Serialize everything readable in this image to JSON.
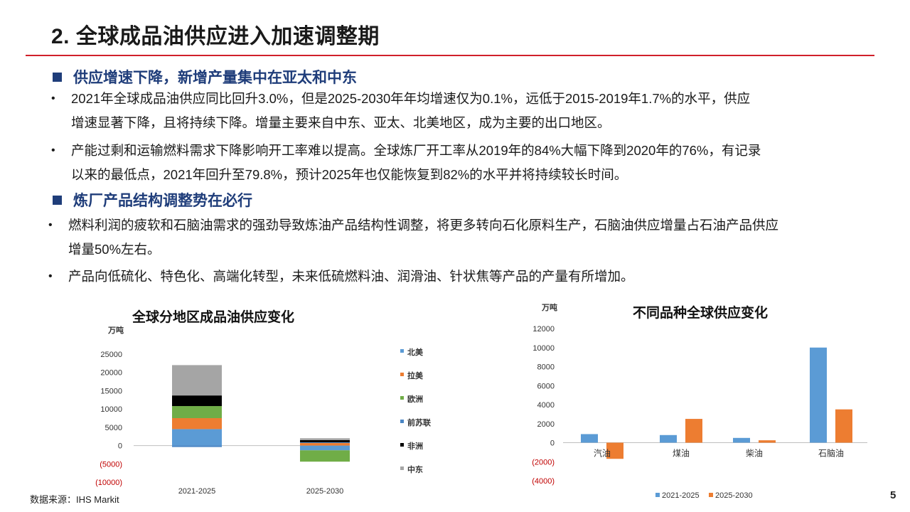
{
  "page": {
    "title": "2. 全球成品油供应进入加速调整期",
    "sections": [
      {
        "heading": "供应增速下降，新增产量集中在亚太和中东",
        "bullets": [
          [
            "2021年全球成品油供应同比回升3.0%，但是2025-2030年年均增速仅为0.1%，远低于2015-2019年1.7%的水平，供应",
            "增速显著下降，且将持续下降。增量主要来自中东、亚太、北美地区，成为主要的出口地区。"
          ],
          [
            "产能过剩和运输燃料需求下降影响开工率难以提高。全球炼厂开工率从2019年的84%大幅下降到2020年的76%，有记录",
            "以来的最低点，2021年回升至79.8%，预计2025年也仅能恢复到82%的水平并将持续较长时间。"
          ]
        ]
      },
      {
        "heading": "炼厂产品结构调整势在必行",
        "bullets": [
          [
            "燃料利润的疲软和石脑油需求的强劲导致炼油产品结构性调整，将更多转向石化原料生产，石脑油供应增量占石油产品供应",
            "增量50%左右。"
          ],
          [
            "产品向低硫化、特色化、高端化转型，未来低硫燃料油、润滑油、针状焦等产品的产量有所增加。"
          ]
        ]
      }
    ],
    "bullet_char": "•",
    "footer": "数据来源：IHS Markit",
    "page_number": "5"
  },
  "colors": {
    "accent_red": "#d0202a",
    "heading_blue": "#1f3d7a"
  },
  "chart_data": [
    {
      "type": "bar",
      "stacked": true,
      "title": "全球分地区成品油供应变化",
      "ylabel": "万吨",
      "categories": [
        "2021-2025",
        "2025-2030"
      ],
      "yticks": [
        "25000",
        "20000",
        "15000",
        "10000",
        "5000",
        "0",
        "(5000)",
        "(10000)"
      ],
      "ylim": [
        -10000,
        25000
      ],
      "series": [
        {
          "name": "北美",
          "color": "#5b9bd5",
          "values": [
            4500,
            -1300
          ]
        },
        {
          "name": "拉美",
          "color": "#ed7d31",
          "values": [
            3000,
            700
          ]
        },
        {
          "name": "欧洲",
          "color": "#70ad47",
          "values": [
            3300,
            -3100
          ]
        },
        {
          "name": "前苏联",
          "color": "#4a86c5",
          "values": [
            -400,
            200
          ]
        },
        {
          "name": "非洲",
          "color": "#000000",
          "values": [
            2900,
            600
          ]
        },
        {
          "name": "中东",
          "color": "#a5a5a5",
          "values": [
            8300,
            500
          ]
        }
      ],
      "legend": "right"
    },
    {
      "type": "bar",
      "title": "不同品种全球供应变化",
      "ylabel": "万吨",
      "categories": [
        "汽油",
        "煤油",
        "柴油",
        "石脑油"
      ],
      "yticks": [
        "12000",
        "10000",
        "8000",
        "6000",
        "4000",
        "2000",
        "0",
        "(2000)",
        "(4000)"
      ],
      "ylim": [
        -4000,
        12000
      ],
      "series": [
        {
          "name": "2021-2025",
          "color": "#5b9bd5",
          "values": [
            900,
            800,
            500,
            10000
          ]
        },
        {
          "name": "2025-2030",
          "color": "#ed7d31",
          "values": [
            -1700,
            2500,
            250,
            3500
          ]
        }
      ],
      "legend": "bottom"
    }
  ]
}
